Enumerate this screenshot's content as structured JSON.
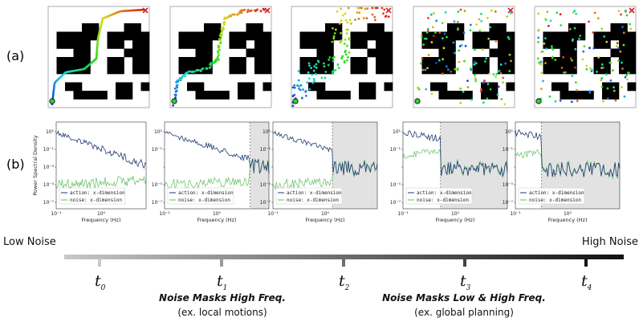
{
  "rows": {
    "a": "(a)",
    "b": "(b)"
  },
  "colors": {
    "series_action": "#1f3b73",
    "series_noise": "#5fbf5f",
    "start": "#33cc33",
    "goal": "#d62728",
    "timeline_start": "#c8c8c8",
    "timeline_end": "#111111",
    "shade": "#e2e2e2"
  },
  "mazes": [
    {
      "noise_level": 0.0
    },
    {
      "noise_level": 0.12
    },
    {
      "noise_level": 0.35
    },
    {
      "noise_level": 0.7
    },
    {
      "noise_level": 1.0
    }
  ],
  "psd": {
    "ylabel": "Power Spectral Density",
    "xlabel": "Frequency (Hz)",
    "xtick_labels": [
      "10⁻¹",
      "10⁰"
    ],
    "ytick_labels": [
      "10¹",
      "10⁻¹",
      "10⁻³",
      "10⁻⁵",
      "10⁻⁷"
    ],
    "legend": {
      "action": "action: x-dimension",
      "noise": "noise:  x-dimension"
    },
    "panels": [
      {
        "cutoff": null
      },
      {
        "cutoff": 0.82
      },
      {
        "cutoff": 0.57
      },
      {
        "cutoff": 0.36
      },
      {
        "cutoff": 0.25
      }
    ]
  },
  "timeline": {
    "low_label": "Low Noise",
    "high_label": "High Noise",
    "ticks": [
      {
        "base": "t",
        "sub": "0"
      },
      {
        "base": "t",
        "sub": "1"
      },
      {
        "base": "t",
        "sub": "2"
      },
      {
        "base": "t",
        "sub": "3"
      },
      {
        "base": "t",
        "sub": "4"
      }
    ],
    "captions": [
      {
        "title": "Noise Masks High Freq.",
        "subtitle": "(ex. local motions)"
      },
      {
        "title": "Noise Masks Low & High Freq.",
        "subtitle": "(ex. global planning)"
      }
    ]
  }
}
